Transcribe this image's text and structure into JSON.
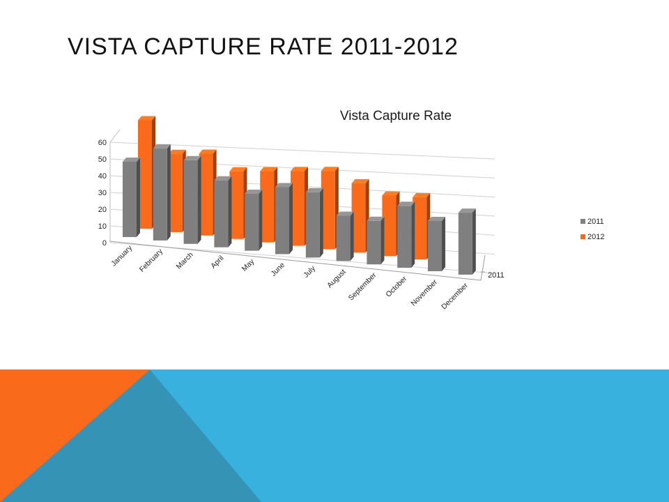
{
  "slide": {
    "title": "VISTA CAPTURE RATE 2011-2012"
  },
  "colors": {
    "series_2011": "#7f7f7f",
    "series_2012": "#f96a1b",
    "band_blue": "#39b1df",
    "band_orange": "#f96a1b",
    "band_teal": "#3593b5"
  },
  "chart_data": {
    "type": "bar",
    "style": "3d-clustered-column",
    "title": "Vista Capture Rate",
    "categories": [
      "January",
      "February",
      "March",
      "April",
      "May",
      "June",
      "July",
      "August",
      "September",
      "October",
      "November",
      "December"
    ],
    "series": [
      {
        "name": "2011",
        "values": [
          45,
          55,
          50,
          40,
          34,
          40,
          39,
          27,
          26,
          37,
          30,
          37
        ]
      },
      {
        "name": "2012",
        "values": [
          61,
          44,
          46,
          38,
          40,
          42,
          44,
          39,
          34,
          35,
          null,
          null
        ]
      }
    ],
    "yticks": [
      0,
      10,
      20,
      30,
      40,
      50,
      60
    ],
    "ylim": [
      0,
      60
    ],
    "depth_axis_label": "2011",
    "grid": true,
    "legend": "right"
  }
}
